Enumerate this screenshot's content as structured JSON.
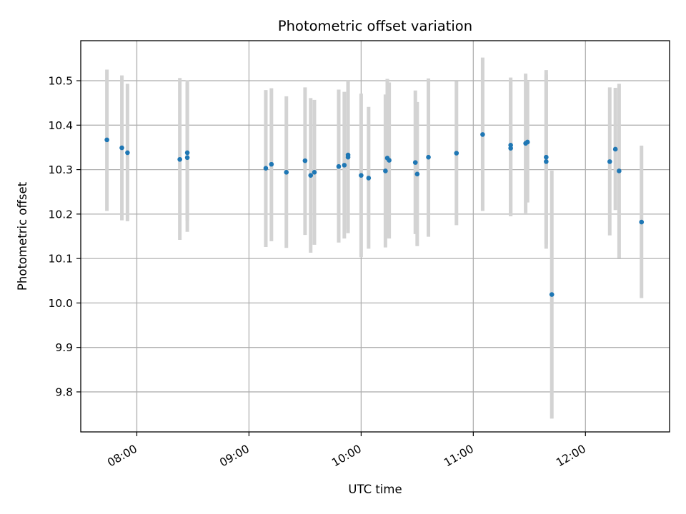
{
  "chart_data": {
    "type": "scatter",
    "title": "Photometric offset variation",
    "xlabel": "UTC time",
    "ylabel": "Photometric offset",
    "x_axis_type": "time",
    "x_ticks": [
      "08:00",
      "09:00",
      "10:00",
      "11:00",
      "12:00"
    ],
    "y_ticks": [
      "9.8",
      "9.9",
      "10.0",
      "10.1",
      "10.2",
      "10.3",
      "10.4",
      "10.5"
    ],
    "xlim": [
      "07:30",
      "12:45"
    ],
    "ylim": [
      9.71,
      10.59
    ],
    "grid": true,
    "legend": "none",
    "colors": {
      "point": "#1f77b4",
      "error_bar": "#d3d3d3"
    },
    "points": [
      {
        "x": "07:44",
        "y": 10.367,
        "yerr_low": 10.207,
        "yerr_high": 10.525
      },
      {
        "x": "07:52",
        "y": 10.349,
        "yerr_low": 10.186,
        "yerr_high": 10.512
      },
      {
        "x": "07:55",
        "y": 10.338,
        "yerr_low": 10.184,
        "yerr_high": 10.493
      },
      {
        "x": "08:23",
        "y": 10.323,
        "yerr_low": 10.142,
        "yerr_high": 10.506
      },
      {
        "x": "08:27",
        "y": 10.338,
        "yerr_low": 10.185,
        "yerr_high": 10.501
      },
      {
        "x": "08:27",
        "y": 10.327,
        "yerr_low": 10.16,
        "yerr_high": 10.495
      },
      {
        "x": "09:09",
        "y": 10.303,
        "yerr_low": 10.126,
        "yerr_high": 10.479
      },
      {
        "x": "09:12",
        "y": 10.312,
        "yerr_low": 10.139,
        "yerr_high": 10.483
      },
      {
        "x": "09:20",
        "y": 10.294,
        "yerr_low": 10.124,
        "yerr_high": 10.465
      },
      {
        "x": "09:30",
        "y": 10.32,
        "yerr_low": 10.153,
        "yerr_high": 10.485
      },
      {
        "x": "09:33",
        "y": 10.287,
        "yerr_low": 10.113,
        "yerr_high": 10.461
      },
      {
        "x": "09:35",
        "y": 10.294,
        "yerr_low": 10.131,
        "yerr_high": 10.457
      },
      {
        "x": "09:48",
        "y": 10.307,
        "yerr_low": 10.136,
        "yerr_high": 10.48
      },
      {
        "x": "09:51",
        "y": 10.31,
        "yerr_low": 10.145,
        "yerr_high": 10.475
      },
      {
        "x": "09:53",
        "y": 10.333,
        "yerr_low": 10.166,
        "yerr_high": 10.5
      },
      {
        "x": "09:53",
        "y": 10.328,
        "yerr_low": 10.157,
        "yerr_high": 10.499
      },
      {
        "x": "10:00",
        "y": 10.287,
        "yerr_low": 10.103,
        "yerr_high": 10.471
      },
      {
        "x": "10:04",
        "y": 10.281,
        "yerr_low": 10.122,
        "yerr_high": 10.441
      },
      {
        "x": "10:13",
        "y": 10.297,
        "yerr_low": 10.125,
        "yerr_high": 10.469
      },
      {
        "x": "10:14",
        "y": 10.326,
        "yerr_low": 10.146,
        "yerr_high": 10.504
      },
      {
        "x": "10:15",
        "y": 10.321,
        "yerr_low": 10.145,
        "yerr_high": 10.496
      },
      {
        "x": "10:29",
        "y": 10.316,
        "yerr_low": 10.155,
        "yerr_high": 10.478
      },
      {
        "x": "10:30",
        "y": 10.29,
        "yerr_low": 10.128,
        "yerr_high": 10.452
      },
      {
        "x": "10:36",
        "y": 10.328,
        "yerr_low": 10.149,
        "yerr_high": 10.505
      },
      {
        "x": "10:51",
        "y": 10.337,
        "yerr_low": 10.175,
        "yerr_high": 10.499
      },
      {
        "x": "11:05",
        "y": 10.379,
        "yerr_low": 10.207,
        "yerr_high": 10.552
      },
      {
        "x": "11:20",
        "y": 10.355,
        "yerr_low": 10.195,
        "yerr_high": 10.507
      },
      {
        "x": "11:20",
        "y": 10.348,
        "yerr_low": 10.196,
        "yerr_high": 10.5
      },
      {
        "x": "11:28",
        "y": 10.359,
        "yerr_low": 10.202,
        "yerr_high": 10.516
      },
      {
        "x": "11:29",
        "y": 10.362,
        "yerr_low": 10.226,
        "yerr_high": 10.498
      },
      {
        "x": "11:39",
        "y": 10.328,
        "yerr_low": 10.132,
        "yerr_high": 10.524
      },
      {
        "x": "11:39",
        "y": 10.318,
        "yerr_low": 10.122,
        "yerr_high": 10.514
      },
      {
        "x": "11:42",
        "y": 10.019,
        "yerr_low": 9.74,
        "yerr_high": 10.298
      },
      {
        "x": "12:13",
        "y": 10.318,
        "yerr_low": 10.152,
        "yerr_high": 10.485
      },
      {
        "x": "12:16",
        "y": 10.346,
        "yerr_low": 10.209,
        "yerr_high": 10.484
      },
      {
        "x": "12:18",
        "y": 10.297,
        "yerr_low": 10.101,
        "yerr_high": 10.493
      },
      {
        "x": "12:30",
        "y": 10.182,
        "yerr_low": 10.011,
        "yerr_high": 10.354
      }
    ]
  }
}
